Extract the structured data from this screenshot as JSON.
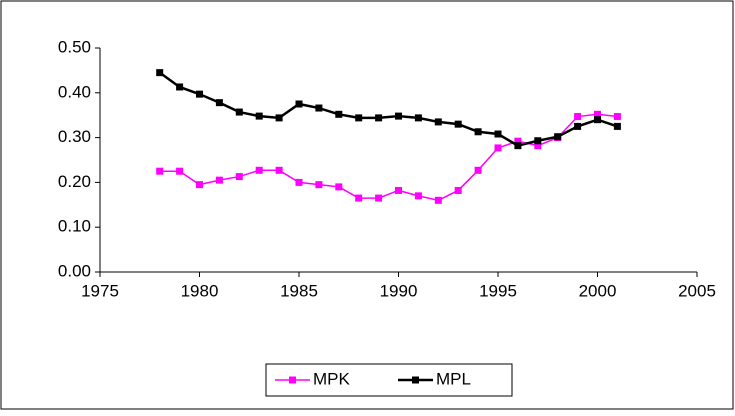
{
  "chart_data": {
    "type": "line",
    "x": [
      1978,
      1979,
      1980,
      1981,
      1982,
      1983,
      1984,
      1985,
      1986,
      1987,
      1988,
      1989,
      1990,
      1991,
      1992,
      1993,
      1994,
      1995,
      1996,
      1997,
      1998,
      1999,
      2000,
      2001
    ],
    "series": [
      {
        "name": "MPK",
        "color": "#ff00ff",
        "values": [
          0.225,
          0.225,
          0.195,
          0.205,
          0.213,
          0.227,
          0.227,
          0.2,
          0.195,
          0.19,
          0.165,
          0.165,
          0.182,
          0.17,
          0.16,
          0.182,
          0.227,
          0.277,
          0.292,
          0.282,
          0.3,
          0.347,
          0.352,
          0.347
        ]
      },
      {
        "name": "MPL",
        "color": "#000000",
        "values": [
          0.445,
          0.413,
          0.397,
          0.378,
          0.357,
          0.348,
          0.344,
          0.375,
          0.366,
          0.352,
          0.344,
          0.344,
          0.348,
          0.344,
          0.335,
          0.33,
          0.313,
          0.308,
          0.282,
          0.293,
          0.302,
          0.325,
          0.34,
          0.325
        ]
      }
    ],
    "xlim": [
      1975,
      2005
    ],
    "xticks": [
      1975,
      1980,
      1985,
      1990,
      1995,
      2000,
      2005
    ],
    "ylim": [
      0,
      0.5
    ],
    "yticks": [
      {
        "value": 0,
        "label": "0.00"
      },
      {
        "value": 0.1,
        "label": "0.10"
      },
      {
        "value": 0.2,
        "label": "0.20"
      },
      {
        "value": 0.3,
        "label": "0.30"
      },
      {
        "value": 0.4,
        "label": "0.40"
      },
      {
        "value": 0.5,
        "label": "0.50"
      }
    ],
    "grid": false,
    "legend": "bottom"
  }
}
